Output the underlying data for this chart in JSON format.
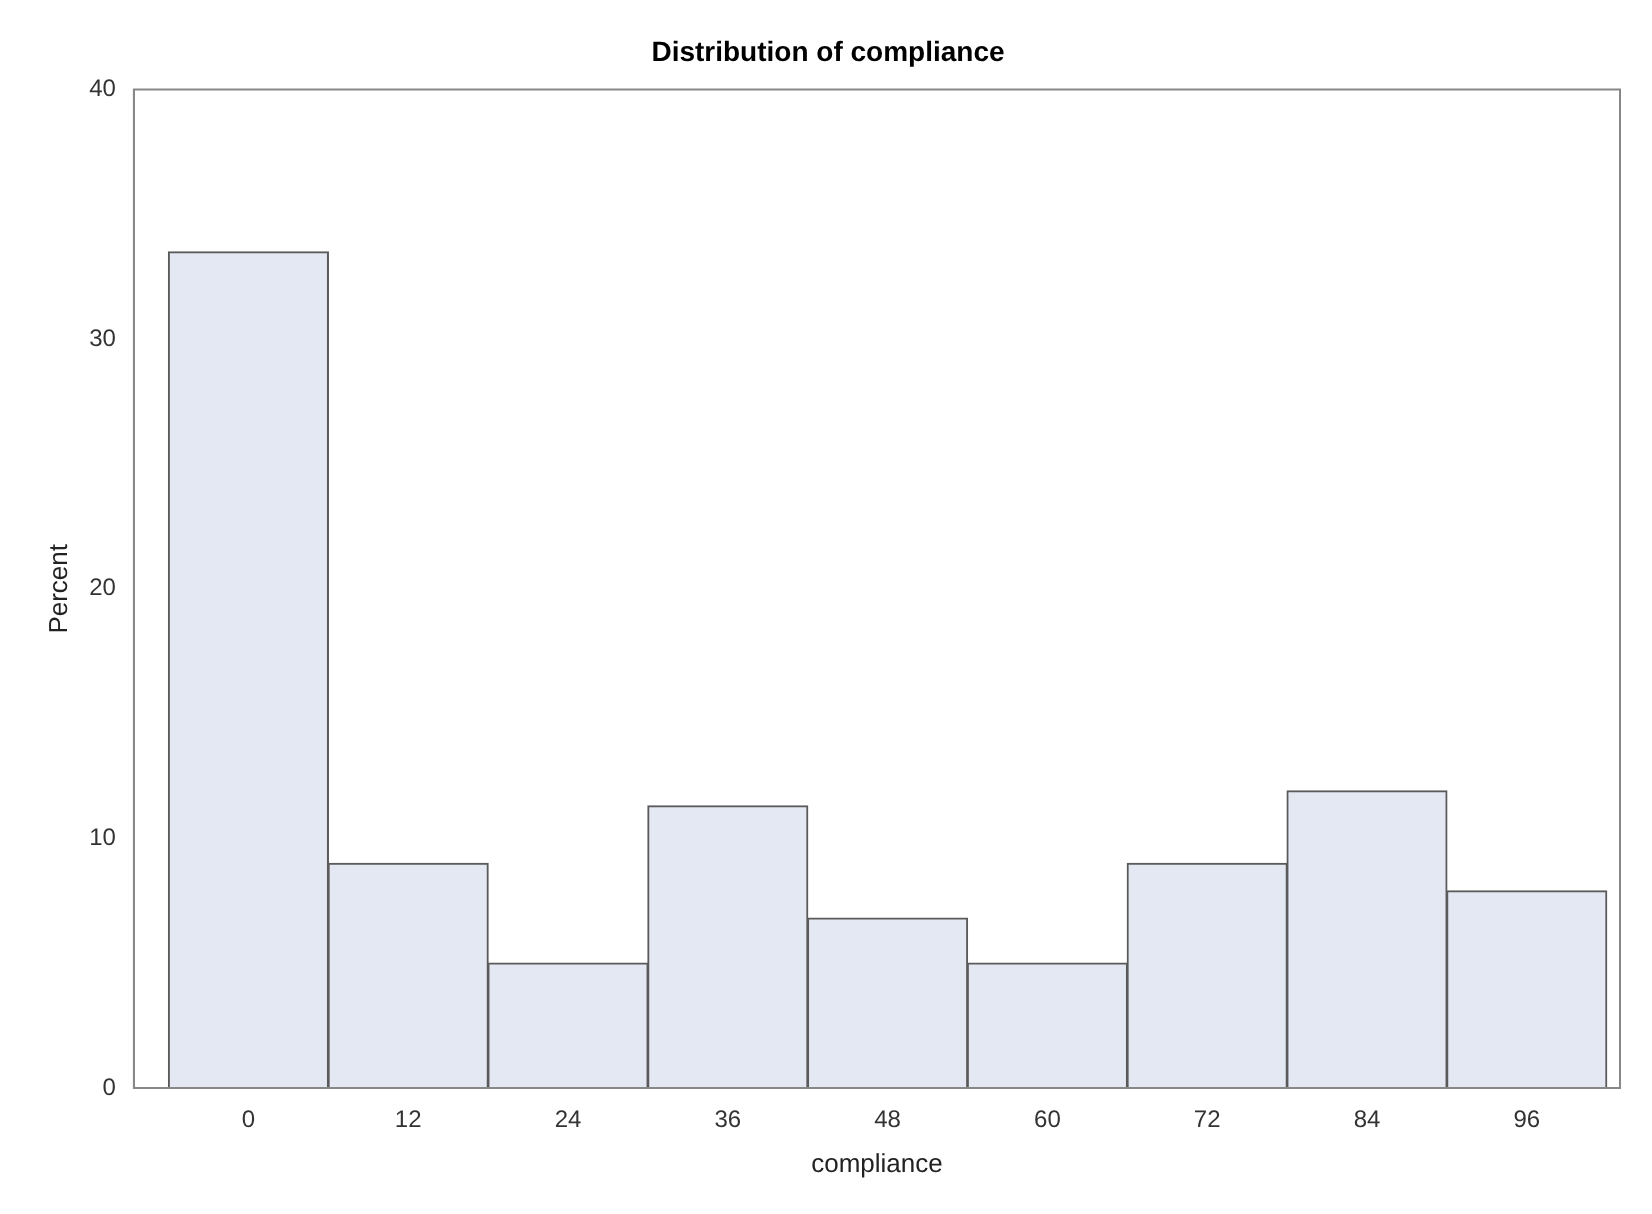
{
  "chart_data": {
    "type": "histogram",
    "title": "Distribution of compliance",
    "xlabel": "compliance",
    "ylabel": "Percent",
    "bins": [
      -6,
      6,
      18,
      30,
      42,
      54,
      66,
      78,
      90,
      102
    ],
    "values": [
      33.5,
      9.0,
      5.0,
      11.3,
      6.8,
      5.0,
      9.0,
      11.9,
      7.9
    ],
    "color": "#e3e8f2",
    "xlim": [
      -8.6,
      103
    ],
    "xticks": [
      0,
      12,
      24,
      36,
      48,
      60,
      72,
      84,
      96
    ],
    "ylim": [
      0,
      40
    ],
    "yticks": [
      0,
      10,
      20,
      30,
      40
    ],
    "grid": false,
    "legend": false
  }
}
